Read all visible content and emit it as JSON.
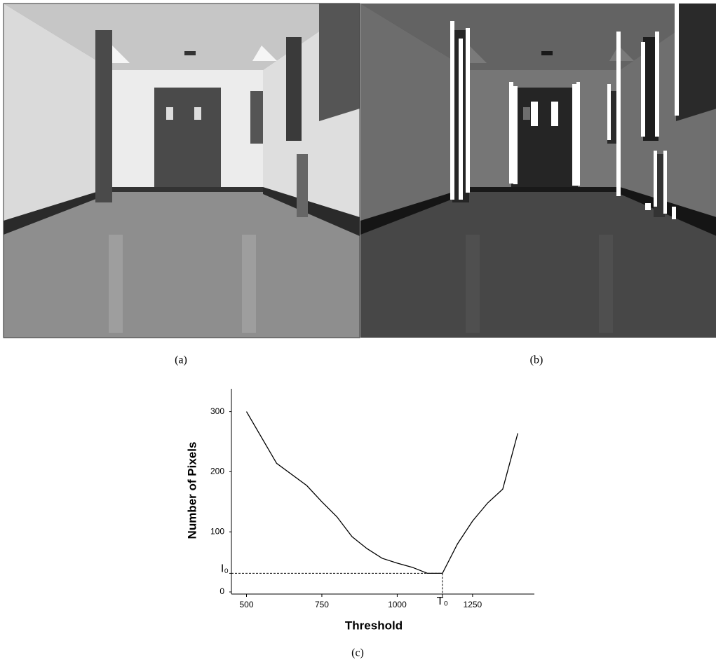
{
  "panels": [
    {
      "label": "(a)"
    },
    {
      "label": "(b)"
    }
  ],
  "chart_data": {
    "type": "line",
    "caption": "(c)",
    "xlabel": "Threshold",
    "ylabel": "Number of Pixels",
    "x": [
      500,
      600,
      700,
      750,
      800,
      850,
      900,
      950,
      1000,
      1050,
      1100,
      1150,
      1200,
      1250,
      1300,
      1350,
      1400
    ],
    "values": [
      300,
      214,
      177,
      150,
      125,
      92,
      72,
      56,
      48,
      41,
      31,
      31,
      80,
      118,
      148,
      171,
      264
    ],
    "color": "#000000",
    "xlim": [
      450,
      1455
    ],
    "ylim": [
      0,
      338
    ],
    "xticks": [
      500,
      750,
      1000,
      {
        "value": 1150,
        "label": "T₀"
      },
      1250
    ],
    "yticks": [
      0,
      {
        "value": 31,
        "label": "I₀"
      },
      100,
      200,
      300
    ]
  }
}
